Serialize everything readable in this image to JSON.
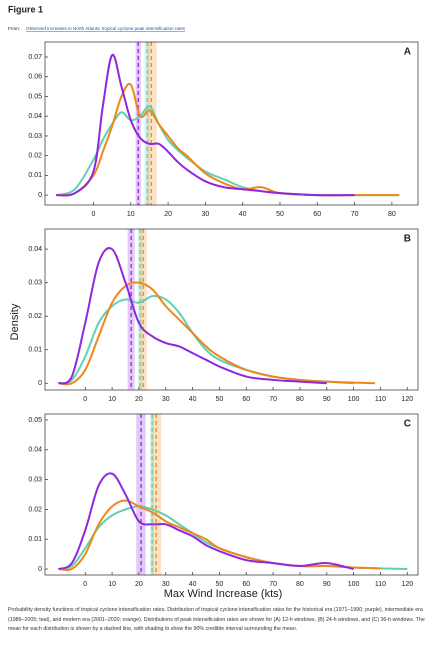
{
  "figure_title": "Figure 1",
  "source_prefix": "From:",
  "source_link": "Observed increases in North Atlantic tropical cyclone peak intensification rates",
  "y_label": "Density",
  "x_label": "Max Wind Increase (kts)",
  "caption": "Probability density functions of tropical cyclone intensification rates. Distribution of tropical cyclone intensification rates for the historical era (1971–1990; purple), intermediate era (1986–2005; teal), and modern era (2001–2020; orange). Distributions of peak intensification rates are shown for (A) 12-h windows, (B) 24-h windows, and (C) 36-h windows. The mean for each distribution is shown by a dashed line, with shading to show the 90% credible interval surrounding the mean.",
  "chart_data": [
    {
      "type": "line",
      "label": "A",
      "xlim": [
        -13,
        87
      ],
      "ylim": [
        -0.005,
        0.0776
      ],
      "xticks": [
        0,
        10,
        20,
        30,
        40,
        50,
        60,
        70,
        80
      ],
      "yticks": [
        0,
        0.01,
        0.02,
        0.03,
        0.04,
        0.05,
        0.06,
        0.07
      ],
      "x": [
        -10,
        -5,
        0,
        2.5,
        5,
        7.5,
        10,
        12.5,
        15,
        17.5,
        20,
        22.5,
        25,
        30,
        35,
        40,
        45,
        50,
        60,
        70,
        82
      ],
      "series": [
        {
          "color": "#5fd0b0",
          "mean": 14.4,
          "ci": [
            13.7,
            15.1
          ],
          "values": [
            0,
            0.003,
            0.018,
            0.028,
            0.036,
            0.042,
            0.038,
            0.04,
            0.045,
            0.036,
            0.028,
            0.023,
            0.019,
            0.012,
            0.008,
            0.004,
            0.002,
            0.001,
            0,
            0,
            0
          ]
        },
        {
          "color": "#f0861a",
          "mean": 15.5,
          "ci": [
            14.3,
            16.9
          ],
          "values": [
            0,
            0.001,
            0.01,
            0.022,
            0.035,
            0.05,
            0.056,
            0.04,
            0.043,
            0.036,
            0.03,
            0.024,
            0.02,
            0.011,
            0.006,
            0.003,
            0.004,
            0.001,
            0,
            0,
            0
          ]
        },
        {
          "color": "#9126e0",
          "mean": 12,
          "ci": [
            11.3,
            12.7
          ],
          "values": [
            0,
            0.001,
            0.012,
            0.045,
            0.071,
            0.055,
            0.038,
            0.029,
            0.026,
            0.026,
            0.022,
            0.017,
            0.013,
            0.007,
            0.004,
            0.003,
            0.002,
            0.001,
            0,
            0,
            null
          ]
        }
      ]
    },
    {
      "type": "line",
      "label": "B",
      "xlim": [
        -15,
        124
      ],
      "ylim": [
        -0.002,
        0.046
      ],
      "xticks": [
        0,
        10,
        20,
        30,
        40,
        50,
        60,
        70,
        80,
        90,
        100,
        110,
        120
      ],
      "yticks": [
        0,
        0.01,
        0.02,
        0.03,
        0.04
      ],
      "x": [
        -10,
        -5,
        0,
        5,
        10,
        15,
        20,
        25,
        30,
        35,
        40,
        45,
        50,
        60,
        70,
        80,
        90,
        100,
        108
      ],
      "series": [
        {
          "color": "#5fd0b0",
          "mean": 20.4,
          "ci": [
            19.6,
            21.2
          ],
          "values": [
            0,
            0.001,
            0.008,
            0.018,
            0.023,
            0.025,
            0.024,
            0.026,
            0.025,
            0.021,
            0.015,
            0.01,
            0.007,
            0.004,
            0.002,
            0.001,
            0.0005,
            0,
            null
          ]
        },
        {
          "color": "#f0861a",
          "mean": 21.6,
          "ci": [
            20.3,
            22.9
          ],
          "values": [
            0,
            0,
            0.004,
            0.014,
            0.024,
            0.029,
            0.03,
            0.028,
            0.023,
            0.019,
            0.015,
            0.011,
            0.008,
            0.004,
            0.002,
            0.001,
            0.0005,
            0.0002,
            0
          ]
        },
        {
          "color": "#9126e0",
          "mean": 17.1,
          "ci": [
            15.8,
            18.4
          ],
          "values": [
            0,
            0.002,
            0.018,
            0.036,
            0.04,
            0.03,
            0.018,
            0.014,
            0.012,
            0.011,
            0.009,
            0.007,
            0.005,
            0.002,
            0.001,
            0.0005,
            0,
            null,
            null
          ]
        }
      ]
    },
    {
      "type": "line",
      "label": "C",
      "xlim": [
        -15,
        124
      ],
      "ylim": [
        -0.002,
        0.052
      ],
      "xticks": [
        0,
        10,
        20,
        30,
        40,
        50,
        60,
        70,
        80,
        90,
        100,
        110,
        120
      ],
      "yticks": [
        0,
        0.01,
        0.02,
        0.03,
        0.04,
        0.05
      ],
      "x": [
        -10,
        -5,
        0,
        5,
        10,
        15,
        20,
        25,
        30,
        35,
        40,
        45,
        50,
        60,
        70,
        80,
        90,
        100,
        110,
        120
      ],
      "series": [
        {
          "color": "#5fd0b0",
          "mean": 24.9,
          "ci": [
            24.2,
            25.6
          ],
          "values": [
            0,
            0.001,
            0.007,
            0.014,
            0.018,
            0.02,
            0.021,
            0.02,
            0.018,
            0.015,
            0.012,
            0.009,
            0.007,
            0.004,
            0.002,
            0.001,
            0.001,
            0.0005,
            0.0002,
            0
          ]
        },
        {
          "color": "#f0861a",
          "mean": 26.4,
          "ci": [
            24.6,
            28.2
          ],
          "values": [
            0,
            0,
            0.005,
            0.015,
            0.021,
            0.023,
            0.021,
            0.019,
            0.016,
            0.014,
            0.012,
            0.01,
            0.007,
            0.004,
            0.002,
            0.001,
            0.001,
            0.0005,
            0.0002,
            null
          ]
        },
        {
          "color": "#9126e0",
          "mean": 20.8,
          "ci": [
            19,
            22.5
          ],
          "values": [
            0,
            0.002,
            0.013,
            0.028,
            0.032,
            0.025,
            0.016,
            0.015,
            0.015,
            0.013,
            0.011,
            0.008,
            0.006,
            0.003,
            0.002,
            0.001,
            0.002,
            0,
            null,
            null
          ]
        }
      ]
    }
  ]
}
